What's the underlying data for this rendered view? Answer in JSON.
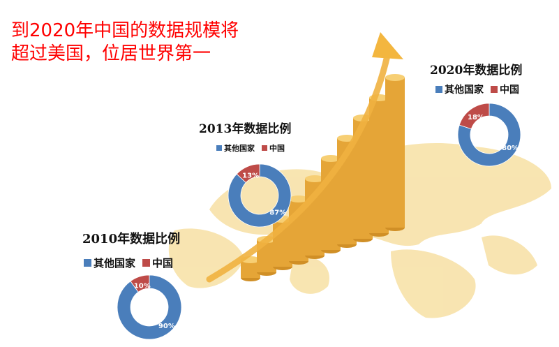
{
  "headline": {
    "line1": "到2020年中国的数据规模将",
    "line2": "超过美国，位居世界第一"
  },
  "colors": {
    "other": "#4a7ebb",
    "china": "#be4b48",
    "headline": "#ff0000",
    "bars": "#e8a93a",
    "map": "#f6dc97"
  },
  "chart_data": [
    {
      "type": "pie",
      "style": "donut",
      "title": "2010年数据比例",
      "legend": [
        "其他国家",
        "中国"
      ],
      "legend_placement": "top",
      "slices": [
        {
          "name": "其他国家",
          "value": 90,
          "label": "90%"
        },
        {
          "name": "中国",
          "value": 10,
          "label": "10%"
        }
      ]
    },
    {
      "type": "pie",
      "style": "donut",
      "title": "2013年数据比例",
      "legend": [
        "其他国家",
        "中国"
      ],
      "legend_placement": "top",
      "slices": [
        {
          "name": "其他国家",
          "value": 87,
          "label": "87%"
        },
        {
          "name": "中国",
          "value": 13,
          "label": "13%"
        }
      ]
    },
    {
      "type": "pie",
      "style": "donut",
      "title": "2020年数据比例",
      "legend": [
        "其他国家",
        "中国"
      ],
      "legend_placement": "top",
      "slices": [
        {
          "name": "其他国家",
          "value": 80,
          "label": "80%"
        },
        {
          "name": "中国",
          "value": 18,
          "label": "18%"
        }
      ]
    }
  ]
}
